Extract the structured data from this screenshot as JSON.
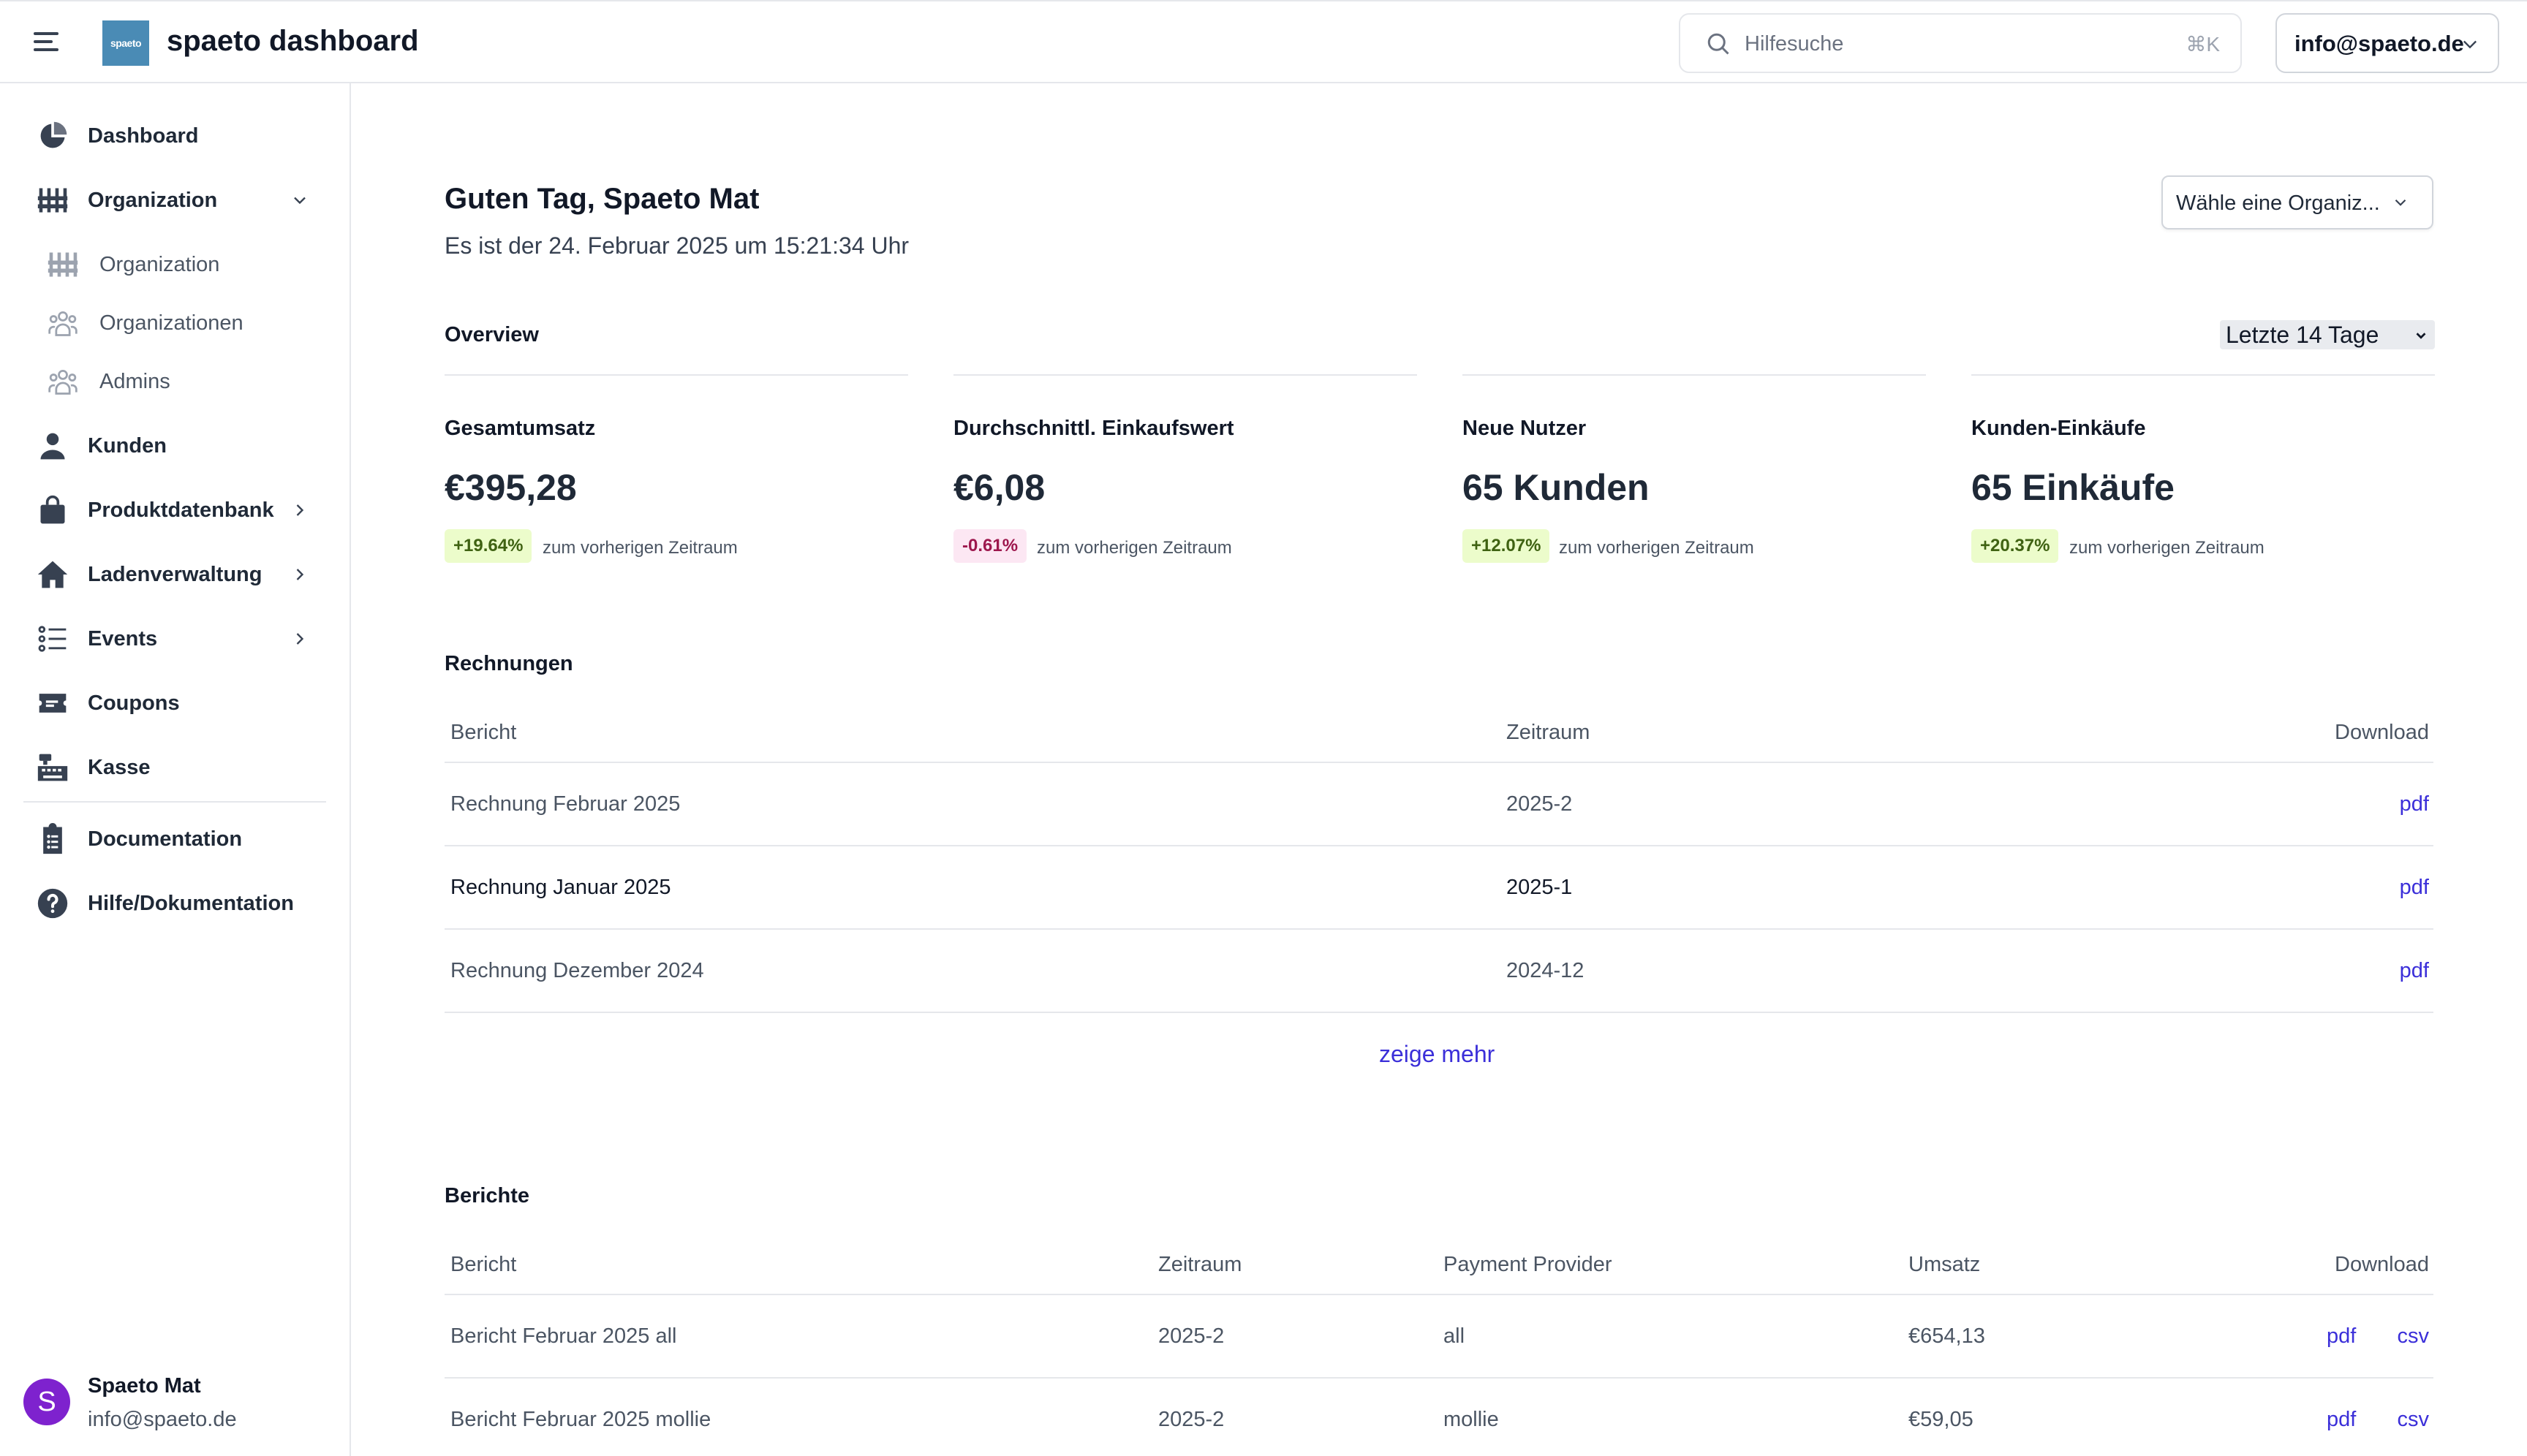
{
  "header": {
    "app_title": "spaeto dashboard",
    "logo_text": "spaeto",
    "search_placeholder": "Hilfesuche",
    "search_shortcut": "⌘K",
    "account_label": "info@spaeto.de"
  },
  "sidebar": {
    "items": [
      {
        "label": "Dashboard",
        "icon": "pie-chart-icon"
      },
      {
        "label": "Organization",
        "icon": "organization-icon"
      },
      {
        "label": "Organization",
        "icon": "organization-icon"
      },
      {
        "label": "Organizationen",
        "icon": "users-group-icon"
      },
      {
        "label": "Admins",
        "icon": "users-group-icon"
      },
      {
        "label": "Kunden",
        "icon": "user-icon"
      },
      {
        "label": "Produktdatenbank",
        "icon": "shopping-bag-icon"
      },
      {
        "label": "Ladenverwaltung",
        "icon": "home-icon"
      },
      {
        "label": "Events",
        "icon": "list-icon"
      },
      {
        "label": "Coupons",
        "icon": "ticket-icon"
      },
      {
        "label": "Kasse",
        "icon": "cash-register-icon"
      },
      {
        "label": "Documentation",
        "icon": "clipboard-icon"
      },
      {
        "label": "Hilfe/Dokumentation",
        "icon": "question-circle-icon"
      }
    ],
    "user": {
      "initial": "S",
      "name": "Spaeto Mat",
      "email": "info@spaeto.de"
    }
  },
  "main": {
    "greeting": "Guten Tag, Spaeto Mat",
    "date_line": "Es ist der 24. Februar 2025 um 15:21:34 Uhr",
    "org_select": "Wähle eine Organiz...",
    "overview_title": "Overview",
    "period_select": "Letzte 14 Tage",
    "stats": [
      {
        "label": "Gesamtumsatz",
        "value": "€395,28",
        "change": "+19.64%",
        "note": "zum vorherigen Zeitraum"
      },
      {
        "label": "Durchschnittl. Einkaufswert",
        "value": "€6,08",
        "change": "-0.61%",
        "note": "zum vorherigen Zeitraum"
      },
      {
        "label": "Neue Nutzer",
        "value": "65 Kunden",
        "change": "+12.07%",
        "note": "zum vorherigen Zeitraum"
      },
      {
        "label": "Kunden-Einkäufe",
        "value": "65 Einkäufe",
        "change": "+20.37%",
        "note": "zum vorherigen Zeitraum"
      }
    ],
    "invoices": {
      "title": "Rechnungen",
      "columns": [
        "Bericht",
        "Zeitraum",
        "Download"
      ],
      "rows": [
        {
          "name": "Rechnung Februar 2025",
          "period": "2025-2",
          "download": "pdf"
        },
        {
          "name": "Rechnung Januar 2025",
          "period": "2025-1",
          "download": "pdf"
        },
        {
          "name": "Rechnung Dezember 2024",
          "period": "2024-12",
          "download": "pdf"
        }
      ],
      "show_more": "zeige mehr"
    },
    "reports": {
      "title": "Berichte",
      "columns": [
        "Bericht",
        "Zeitraum",
        "Payment Provider",
        "Umsatz",
        "Download"
      ],
      "rows": [
        {
          "name": "Bericht Februar 2025 all",
          "period": "2025-2",
          "provider": "all",
          "revenue": "€654,13",
          "pdf": "pdf",
          "csv": "csv"
        },
        {
          "name": "Bericht Februar 2025 mollie",
          "period": "2025-2",
          "provider": "mollie",
          "revenue": "€59,05",
          "pdf": "pdf",
          "csv": "csv"
        }
      ]
    }
  }
}
